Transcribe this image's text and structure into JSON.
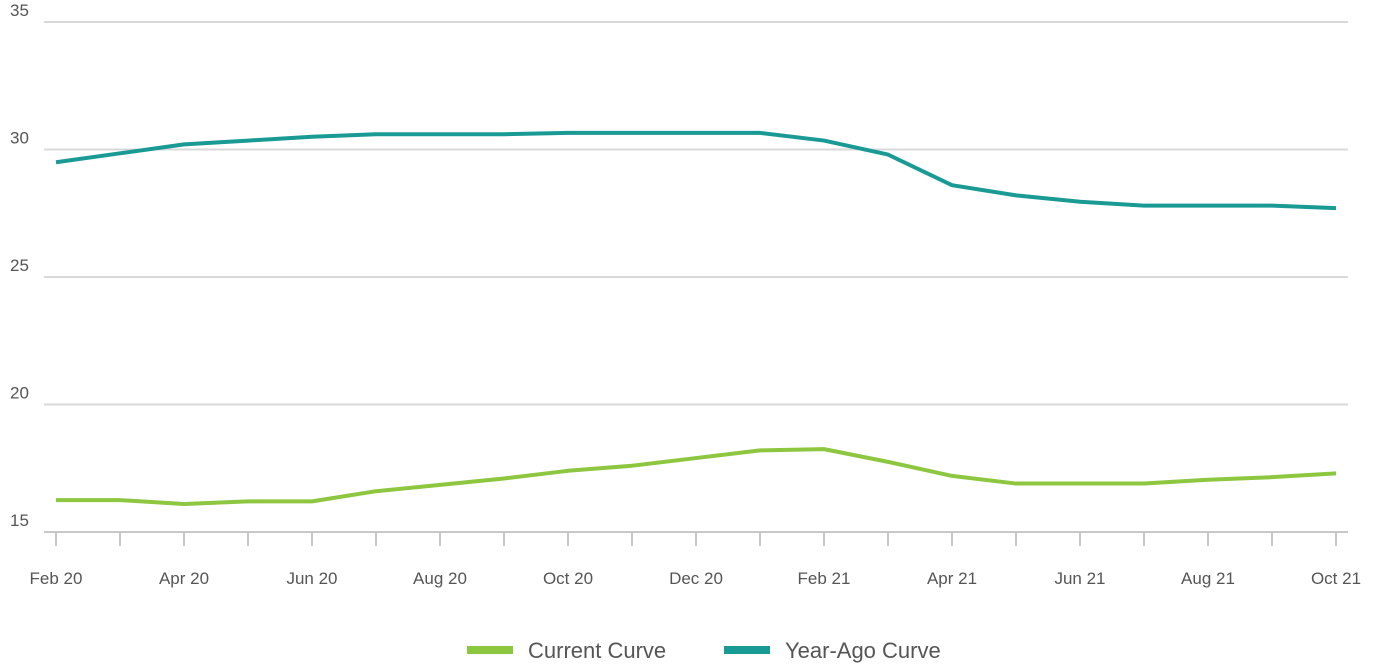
{
  "chart_data": {
    "type": "line",
    "categories": [
      "Feb 20",
      null,
      "Apr 20",
      null,
      "Jun 20",
      null,
      "Aug 20",
      null,
      "Oct 20",
      null,
      "Dec 20",
      null,
      "Feb 21",
      null,
      "Apr 21",
      null,
      "Jun 21",
      null,
      "Aug 21",
      null,
      "Oct 21"
    ],
    "series": [
      {
        "name": "Current Curve",
        "color": "#8dc63f",
        "values": [
          16.25,
          16.25,
          16.1,
          16.2,
          16.2,
          16.6,
          16.85,
          17.1,
          17.4,
          17.6,
          17.9,
          18.2,
          18.25,
          17.75,
          17.2,
          16.9,
          16.9,
          16.9,
          17.05,
          17.15,
          17.3
        ]
      },
      {
        "name": "Year-Ago Curve",
        "color": "#1a9a94",
        "values": [
          29.5,
          29.85,
          30.2,
          30.35,
          30.5,
          30.6,
          30.6,
          30.6,
          30.65,
          30.65,
          30.65,
          30.65,
          30.35,
          29.8,
          28.6,
          28.2,
          27.95,
          27.8,
          27.8,
          27.8,
          27.7
        ]
      }
    ],
    "ylim": [
      15,
      35
    ],
    "yticks": [
      15,
      20,
      25,
      30,
      35
    ],
    "grid": true,
    "legend": "bottom"
  }
}
